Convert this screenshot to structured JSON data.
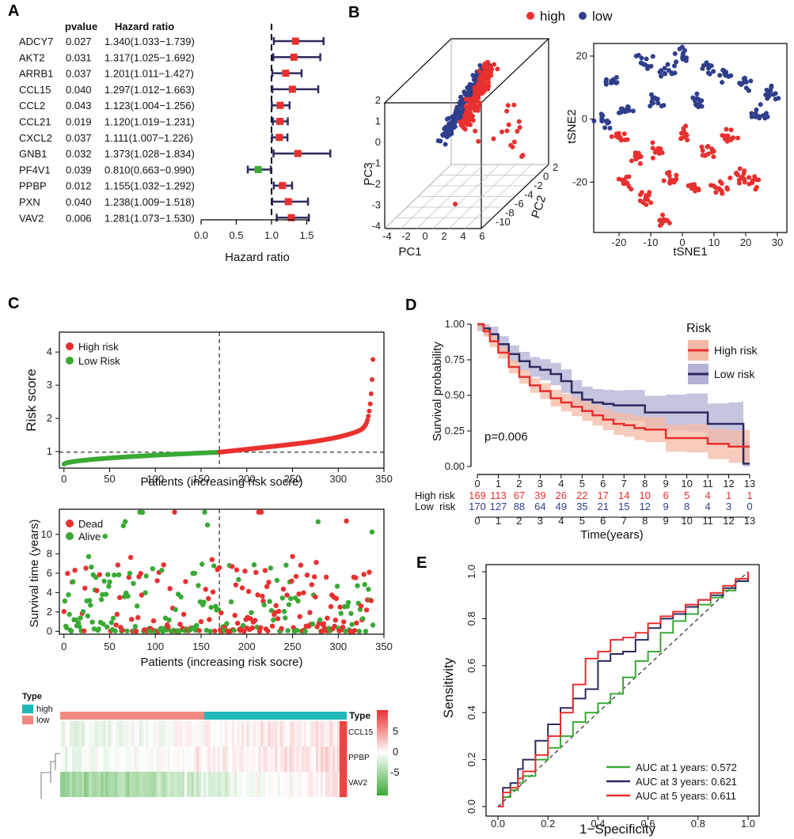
{
  "colors": {
    "red": "#e8302f",
    "blue": "#2f3e8c",
    "green": "#3aa935",
    "navy": "#2c2a5e",
    "teal": "#1fb8b8",
    "salmon": "#f08a80"
  },
  "panel_labels": {
    "a": "A",
    "b": "B",
    "c": "C",
    "d": "D",
    "e": "E"
  },
  "chart_data": [
    {
      "id": "A",
      "type": "forest",
      "col_pvalue": "pvalue",
      "col_hr": "Hazard ratio",
      "xlabel": "Hazard ratio",
      "xticks": [
        "0.0",
        "0.5",
        "1.0",
        "1.5"
      ],
      "xlim": [
        0,
        1.8
      ],
      "genes": [
        {
          "name": "ADCY7",
          "p": "0.027",
          "hr_text": "1.340(1.033−1.739)",
          "hr": 1.34,
          "lo": 1.033,
          "hi": 1.739
        },
        {
          "name": "AKT2",
          "p": "0.031",
          "hr_text": "1.317(1.025−1.692)",
          "hr": 1.317,
          "lo": 1.025,
          "hi": 1.692
        },
        {
          "name": "ARRB1",
          "p": "0.037",
          "hr_text": "1.201(1.011−1.427)",
          "hr": 1.201,
          "lo": 1.011,
          "hi": 1.427
        },
        {
          "name": "CCL15",
          "p": "0.040",
          "hr_text": "1.297(1.012−1.663)",
          "hr": 1.297,
          "lo": 1.012,
          "hi": 1.663
        },
        {
          "name": "CCL2",
          "p": "0.043",
          "hr_text": "1.123(1.004−1.256)",
          "hr": 1.123,
          "lo": 1.004,
          "hi": 1.256
        },
        {
          "name": "CCL21",
          "p": "0.019",
          "hr_text": "1.120(1.019−1.231)",
          "hr": 1.12,
          "lo": 1.019,
          "hi": 1.231
        },
        {
          "name": "CXCL2",
          "p": "0.037",
          "hr_text": "1.111(1.007−1.226)",
          "hr": 1.111,
          "lo": 1.007,
          "hi": 1.226
        },
        {
          "name": "GNB1",
          "p": "0.032",
          "hr_text": "1.373(1.028−1.834)",
          "hr": 1.373,
          "lo": 1.028,
          "hi": 1.834
        },
        {
          "name": "PF4V1",
          "p": "0.039",
          "hr_text": "0.810(0.663−0.990)",
          "hr": 0.81,
          "lo": 0.663,
          "hi": 0.99
        },
        {
          "name": "PPBP",
          "p": "0.012",
          "hr_text": "1.155(1.032−1.292)",
          "hr": 1.155,
          "lo": 1.032,
          "hi": 1.292
        },
        {
          "name": "PXN",
          "p": "0.040",
          "hr_text": "1.238(1.009−1.518)",
          "hr": 1.238,
          "lo": 1.009,
          "hi": 1.518
        },
        {
          "name": "VAV2",
          "p": "0.006",
          "hr_text": "1.281(1.073−1.530)",
          "hr": 1.281,
          "lo": 1.073,
          "hi": 1.53
        }
      ]
    },
    {
      "id": "B",
      "type": "scatter",
      "legend": [
        "high",
        "low"
      ],
      "pca": {
        "xlabel": "PC1",
        "ylabel": "PC2",
        "zlabel": "PC3",
        "pc1_ticks": [
          "-4",
          "-2",
          "0",
          "2",
          "4",
          "6"
        ],
        "pc2_ticks": [
          "2",
          "0",
          "-2",
          "-4",
          "-6",
          "-8",
          "-10"
        ],
        "pc3_ticks": [
          "2",
          "1",
          "0",
          "-1",
          "-2",
          "-3",
          "-4"
        ]
      },
      "tsne": {
        "xlabel": "tSNE1",
        "ylabel": "tSNE2",
        "xticks": [
          "-20",
          "-10",
          "0",
          "10",
          "20",
          "30"
        ],
        "yticks": [
          "20",
          "0",
          "-20"
        ],
        "xlim": [
          -28,
          33
        ],
        "ylim": [
          -36,
          24
        ]
      }
    },
    {
      "id": "C1",
      "type": "scatter",
      "xlabel": "Patients (increasing risk socre)",
      "ylabel": "Risk score",
      "xticks": [
        "0",
        "50",
        "100",
        "150",
        "200",
        "250",
        "300",
        "350"
      ],
      "yticks": [
        "1",
        "2",
        "3",
        "4"
      ],
      "xlim": [
        -5,
        350
      ],
      "ylim": [
        0.5,
        4.6
      ],
      "cutoff_x": 170,
      "cutoff_y": 0.98,
      "legend": [
        "High risk",
        "Low Risk"
      ]
    },
    {
      "id": "C2",
      "type": "scatter",
      "xlabel": "Patients (increasing risk socre)",
      "ylabel": "Survival time (years)",
      "xticks": [
        "0",
        "50",
        "100",
        "150",
        "200",
        "250",
        "300",
        "350"
      ],
      "yticks": [
        "0",
        "2",
        "4",
        "6",
        "8",
        "10"
      ],
      "xlim": [
        -5,
        350
      ],
      "ylim": [
        -0.3,
        12.6
      ],
      "cutoff_x": 170,
      "legend": [
        "Dead",
        "Alive"
      ]
    },
    {
      "id": "C3",
      "type": "heatmap",
      "type_label": "Type",
      "groups": [
        "high",
        "low"
      ],
      "rows": [
        "CCL15",
        "PPBP",
        "VAV2"
      ],
      "scale_ticks": [
        "5",
        "0",
        "-5"
      ]
    },
    {
      "id": "D",
      "type": "line",
      "legend_title": "Risk",
      "series_names": [
        "High risk",
        "Low risk"
      ],
      "ylabel": "Survival probability",
      "xlabel": "Time(years)",
      "pvalue": "p=0.006",
      "xticks": [
        "0",
        "1",
        "2",
        "3",
        "4",
        "5",
        "6",
        "7",
        "8",
        "9",
        "10",
        "11",
        "12",
        "13"
      ],
      "yticks": [
        "0.00",
        "0.25",
        "0.50",
        "0.75",
        "1.00"
      ],
      "xlim": [
        0,
        13
      ],
      "ylim": [
        0,
        1
      ],
      "high": {
        "x": [
          0,
          0.3,
          0.6,
          1,
          1.5,
          2,
          2.5,
          3,
          3.5,
          4,
          4.5,
          5,
          5.5,
          6,
          6.5,
          7,
          7.5,
          8,
          9,
          10,
          11,
          12,
          12.7,
          13
        ],
        "y": [
          1,
          0.95,
          0.88,
          0.8,
          0.7,
          0.63,
          0.57,
          0.53,
          0.48,
          0.45,
          0.42,
          0.39,
          0.36,
          0.33,
          0.3,
          0.29,
          0.27,
          0.26,
          0.2,
          0.2,
          0.16,
          0.14,
          0.14,
          0.14
        ]
      },
      "low": {
        "x": [
          0,
          0.3,
          0.6,
          1,
          1.5,
          2,
          2.5,
          3,
          3.5,
          4,
          4.5,
          5,
          5.5,
          6,
          6.5,
          7,
          8,
          9,
          10,
          11,
          12,
          12.6,
          12.7,
          13
        ],
        "y": [
          1,
          0.97,
          0.93,
          0.86,
          0.79,
          0.74,
          0.7,
          0.68,
          0.65,
          0.6,
          0.52,
          0.47,
          0.45,
          0.44,
          0.43,
          0.43,
          0.38,
          0.38,
          0.38,
          0.3,
          0.3,
          0.3,
          0.02,
          0.02
        ]
      },
      "risk_table": {
        "row_labels": [
          "High risk",
          "Low  risk"
        ],
        "high": [
          "169",
          "113",
          "67",
          "39",
          "26",
          "22",
          "17",
          "14",
          "10",
          "6",
          "5",
          "4",
          "1",
          "1"
        ],
        "low": [
          "170",
          "127",
          "88",
          "64",
          "49",
          "35",
          "21",
          "15",
          "12",
          "9",
          "8",
          "4",
          "3",
          "0"
        ]
      }
    },
    {
      "id": "E",
      "type": "line",
      "xlabel": "1−Specificity",
      "ylabel": "Sensitivity",
      "xticks": [
        "0.0",
        "0.2",
        "0.4",
        "0.6",
        "0.8",
        "1.0"
      ],
      "yticks": [
        "0.0",
        "0.2",
        "0.4",
        "0.6",
        "0.8",
        "1.0"
      ],
      "xlim": [
        0,
        1
      ],
      "ylim": [
        0,
        1
      ],
      "series": [
        {
          "name": "AUC at 1 years: 0.572",
          "x": [
            0,
            0.02,
            0.05,
            0.08,
            0.1,
            0.15,
            0.2,
            0.25,
            0.3,
            0.35,
            0.4,
            0.45,
            0.5,
            0.55,
            0.6,
            0.65,
            0.7,
            0.75,
            0.8,
            0.85,
            0.9,
            0.95,
            1
          ],
          "y": [
            0,
            0.04,
            0.07,
            0.1,
            0.13,
            0.2,
            0.25,
            0.3,
            0.36,
            0.4,
            0.44,
            0.48,
            0.55,
            0.62,
            0.66,
            0.74,
            0.79,
            0.82,
            0.86,
            0.89,
            0.92,
            0.96,
            1
          ]
        },
        {
          "name": "AUC at 3 years: 0.621",
          "x": [
            0,
            0.02,
            0.05,
            0.08,
            0.1,
            0.15,
            0.2,
            0.25,
            0.3,
            0.35,
            0.4,
            0.45,
            0.5,
            0.55,
            0.6,
            0.65,
            0.7,
            0.75,
            0.8,
            0.85,
            0.9,
            0.95,
            1
          ],
          "y": [
            0,
            0.08,
            0.1,
            0.16,
            0.2,
            0.28,
            0.35,
            0.42,
            0.46,
            0.5,
            0.62,
            0.65,
            0.66,
            0.71,
            0.76,
            0.8,
            0.82,
            0.85,
            0.88,
            0.9,
            0.93,
            0.96,
            1
          ]
        },
        {
          "name": "AUC at 5 years: 0.611",
          "x": [
            0,
            0.02,
            0.05,
            0.08,
            0.1,
            0.15,
            0.2,
            0.25,
            0.3,
            0.35,
            0.4,
            0.45,
            0.5,
            0.55,
            0.6,
            0.65,
            0.7,
            0.75,
            0.8,
            0.85,
            0.9,
            0.95,
            1
          ],
          "y": [
            0,
            0.06,
            0.08,
            0.12,
            0.15,
            0.22,
            0.3,
            0.4,
            0.52,
            0.63,
            0.66,
            0.71,
            0.72,
            0.74,
            0.78,
            0.81,
            0.83,
            0.86,
            0.88,
            0.91,
            0.94,
            0.97,
            1
          ]
        }
      ]
    }
  ]
}
